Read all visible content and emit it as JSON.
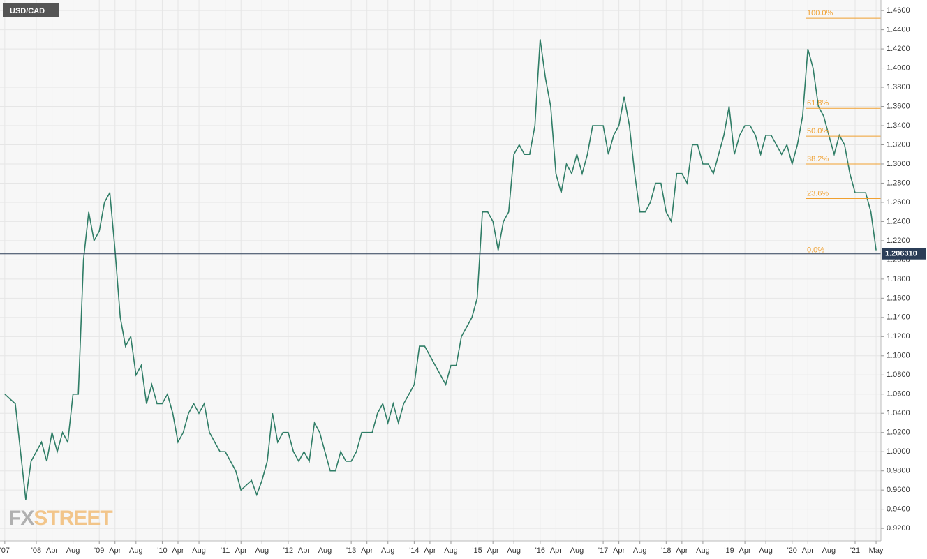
{
  "chart_data": {
    "type": "line",
    "title": "USD/CAD",
    "watermark": [
      "FX",
      "STREET"
    ],
    "x": [
      2007.5,
      2007.583,
      2007.667,
      2007.75,
      2007.833,
      2007.917,
      2008,
      2008.083,
      2008.167,
      2008.25,
      2008.333,
      2008.417,
      2008.5,
      2008.583,
      2008.667,
      2008.75,
      2008.833,
      2008.917,
      2009,
      2009.083,
      2009.167,
      2009.25,
      2009.333,
      2009.417,
      2009.5,
      2009.583,
      2009.667,
      2009.75,
      2009.833,
      2009.917,
      2010,
      2010.083,
      2010.167,
      2010.25,
      2010.333,
      2010.417,
      2010.5,
      2010.583,
      2010.667,
      2010.75,
      2010.833,
      2010.917,
      2011,
      2011.083,
      2011.167,
      2011.25,
      2011.333,
      2011.417,
      2011.5,
      2011.583,
      2011.667,
      2011.75,
      2011.833,
      2011.917,
      2012,
      2012.083,
      2012.167,
      2012.25,
      2012.333,
      2012.417,
      2012.5,
      2012.583,
      2012.667,
      2012.75,
      2012.833,
      2012.917,
      2013,
      2013.083,
      2013.167,
      2013.25,
      2013.333,
      2013.417,
      2013.5,
      2013.583,
      2013.667,
      2013.75,
      2013.833,
      2013.917,
      2014,
      2014.083,
      2014.167,
      2014.25,
      2014.333,
      2014.417,
      2014.5,
      2014.583,
      2014.667,
      2014.75,
      2014.833,
      2014.917,
      2015,
      2015.083,
      2015.167,
      2015.25,
      2015.333,
      2015.417,
      2015.5,
      2015.583,
      2015.667,
      2015.75,
      2015.833,
      2015.917,
      2016,
      2016.083,
      2016.167,
      2016.25,
      2016.333,
      2016.417,
      2016.5,
      2016.583,
      2016.667,
      2016.75,
      2016.833,
      2016.917,
      2017,
      2017.083,
      2017.167,
      2017.25,
      2017.333,
      2017.417,
      2017.5,
      2017.583,
      2017.667,
      2017.75,
      2017.833,
      2017.917,
      2018,
      2018.083,
      2018.167,
      2018.25,
      2018.333,
      2018.417,
      2018.5,
      2018.583,
      2018.667,
      2018.75,
      2018.833,
      2018.917,
      2019,
      2019.083,
      2019.167,
      2019.25,
      2019.333,
      2019.417,
      2019.5,
      2019.583,
      2019.667,
      2019.75,
      2019.833,
      2019.917,
      2020,
      2020.083,
      2020.167,
      2020.25,
      2020.333,
      2020.417,
      2020.5,
      2020.583,
      2020.667,
      2020.75,
      2020.833,
      2020.917,
      2021,
      2021.083,
      2021.167,
      2021.25,
      2021.333
    ],
    "series": [
      {
        "color": "#2f7d66",
        "values": [
          1.06,
          1.055,
          1.05,
          1.0,
          0.95,
          0.99,
          1.0,
          1.01,
          0.99,
          1.02,
          1.0,
          1.02,
          1.01,
          1.06,
          1.06,
          1.2,
          1.25,
          1.22,
          1.23,
          1.26,
          1.27,
          1.21,
          1.14,
          1.11,
          1.12,
          1.08,
          1.09,
          1.05,
          1.07,
          1.05,
          1.05,
          1.06,
          1.04,
          1.01,
          1.02,
          1.04,
          1.05,
          1.04,
          1.05,
          1.02,
          1.01,
          1.0,
          1.0,
          0.99,
          0.98,
          0.96,
          0.965,
          0.97,
          0.955,
          0.97,
          0.99,
          1.04,
          1.01,
          1.02,
          1.02,
          1.0,
          0.99,
          1.0,
          0.99,
          1.03,
          1.02,
          1.0,
          0.98,
          0.98,
          1.0,
          0.99,
          0.99,
          1.0,
          1.02,
          1.02,
          1.02,
          1.04,
          1.05,
          1.03,
          1.05,
          1.03,
          1.05,
          1.06,
          1.07,
          1.11,
          1.11,
          1.1,
          1.09,
          1.08,
          1.07,
          1.09,
          1.09,
          1.12,
          1.13,
          1.14,
          1.16,
          1.25,
          1.25,
          1.24,
          1.21,
          1.24,
          1.25,
          1.31,
          1.32,
          1.31,
          1.31,
          1.34,
          1.43,
          1.39,
          1.36,
          1.29,
          1.27,
          1.3,
          1.29,
          1.31,
          1.29,
          1.31,
          1.34,
          1.34,
          1.34,
          1.31,
          1.33,
          1.34,
          1.37,
          1.34,
          1.29,
          1.25,
          1.25,
          1.26,
          1.28,
          1.28,
          1.25,
          1.24,
          1.29,
          1.29,
          1.28,
          1.32,
          1.32,
          1.3,
          1.3,
          1.29,
          1.31,
          1.33,
          1.36,
          1.31,
          1.33,
          1.34,
          1.34,
          1.33,
          1.31,
          1.33,
          1.33,
          1.32,
          1.31,
          1.32,
          1.3,
          1.32,
          1.35,
          1.42,
          1.4,
          1.36,
          1.35,
          1.33,
          1.31,
          1.33,
          1.32,
          1.29,
          1.27,
          1.27,
          1.27,
          1.25,
          1.21
        ]
      }
    ],
    "xlim": [
      2007.424,
      2021.41
    ],
    "ylim": [
      0.907,
      1.471
    ],
    "xticks": [
      {
        "value": 2007.5,
        "label": "'07"
      },
      {
        "value": 2008,
        "label": "'08"
      },
      {
        "value": 2008.25,
        "label": "Apr"
      },
      {
        "value": 2008.583,
        "label": "Aug"
      },
      {
        "value": 2009,
        "label": "'09"
      },
      {
        "value": 2009.25,
        "label": "Apr"
      },
      {
        "value": 2009.583,
        "label": "Aug"
      },
      {
        "value": 2010,
        "label": "'10"
      },
      {
        "value": 2010.25,
        "label": "Apr"
      },
      {
        "value": 2010.583,
        "label": "Aug"
      },
      {
        "value": 2011,
        "label": "'11"
      },
      {
        "value": 2011.25,
        "label": "Apr"
      },
      {
        "value": 2011.583,
        "label": "Aug"
      },
      {
        "value": 2012,
        "label": "'12"
      },
      {
        "value": 2012.25,
        "label": "Apr"
      },
      {
        "value": 2012.583,
        "label": "Aug"
      },
      {
        "value": 2013,
        "label": "'13"
      },
      {
        "value": 2013.25,
        "label": "Apr"
      },
      {
        "value": 2013.583,
        "label": "Aug"
      },
      {
        "value": 2014,
        "label": "'14"
      },
      {
        "value": 2014.25,
        "label": "Apr"
      },
      {
        "value": 2014.583,
        "label": "Aug"
      },
      {
        "value": 2015,
        "label": "'15"
      },
      {
        "value": 2015.25,
        "label": "Apr"
      },
      {
        "value": 2015.583,
        "label": "Aug"
      },
      {
        "value": 2016,
        "label": "'16"
      },
      {
        "value": 2016.25,
        "label": "Apr"
      },
      {
        "value": 2016.583,
        "label": "Aug"
      },
      {
        "value": 2017,
        "label": "'17"
      },
      {
        "value": 2017.25,
        "label": "Apr"
      },
      {
        "value": 2017.583,
        "label": "Aug"
      },
      {
        "value": 2018,
        "label": "'18"
      },
      {
        "value": 2018.25,
        "label": "Apr"
      },
      {
        "value": 2018.583,
        "label": "Aug"
      },
      {
        "value": 2019,
        "label": "'19"
      },
      {
        "value": 2019.25,
        "label": "Apr"
      },
      {
        "value": 2019.583,
        "label": "Aug"
      },
      {
        "value": 2020,
        "label": "'20"
      },
      {
        "value": 2020.25,
        "label": "Apr"
      },
      {
        "value": 2020.583,
        "label": "Aug"
      },
      {
        "value": 2021,
        "label": "'21"
      },
      {
        "value": 2021.333,
        "label": "May"
      }
    ],
    "yticks": [
      {
        "value": 0.92,
        "label": "0.9200"
      },
      {
        "value": 0.94,
        "label": "0.9400"
      },
      {
        "value": 0.96,
        "label": "0.9600"
      },
      {
        "value": 0.98,
        "label": "0.9800"
      },
      {
        "value": 1.0,
        "label": "1.0000"
      },
      {
        "value": 1.02,
        "label": "1.0200"
      },
      {
        "value": 1.04,
        "label": "1.0400"
      },
      {
        "value": 1.06,
        "label": "1.0600"
      },
      {
        "value": 1.08,
        "label": "1.0800"
      },
      {
        "value": 1.1,
        "label": "1.1000"
      },
      {
        "value": 1.12,
        "label": "1.1200"
      },
      {
        "value": 1.14,
        "label": "1.1400"
      },
      {
        "value": 1.16,
        "label": "1.1600"
      },
      {
        "value": 1.18,
        "label": "1.1800"
      },
      {
        "value": 1.2,
        "label": "1.2000"
      },
      {
        "value": 1.22,
        "label": "1.2200"
      },
      {
        "value": 1.24,
        "label": "1.2400"
      },
      {
        "value": 1.26,
        "label": "1.2600"
      },
      {
        "value": 1.28,
        "label": "1.2800"
      },
      {
        "value": 1.3,
        "label": "1.3000"
      },
      {
        "value": 1.32,
        "label": "1.3200"
      },
      {
        "value": 1.34,
        "label": "1.3400"
      },
      {
        "value": 1.36,
        "label": "1.3600"
      },
      {
        "value": 1.38,
        "label": "1.3800"
      },
      {
        "value": 1.4,
        "label": "1.4000"
      },
      {
        "value": 1.42,
        "label": "1.4200"
      },
      {
        "value": 1.44,
        "label": "1.4400"
      },
      {
        "value": 1.46,
        "label": "1.4600"
      }
    ],
    "fib_levels": [
      {
        "value": 1.452,
        "label": "100.0%"
      },
      {
        "value": 1.358,
        "label": "61.8%"
      },
      {
        "value": 1.329,
        "label": "50.0%"
      },
      {
        "value": 1.3,
        "label": "38.2%"
      },
      {
        "value": 1.264,
        "label": "23.6%"
      },
      {
        "value": 1.205,
        "label": "0.0%"
      }
    ],
    "fib_color": "#f0a030",
    "current_price": {
      "value": 1.20631,
      "label": "1.206310"
    },
    "grid": true
  }
}
